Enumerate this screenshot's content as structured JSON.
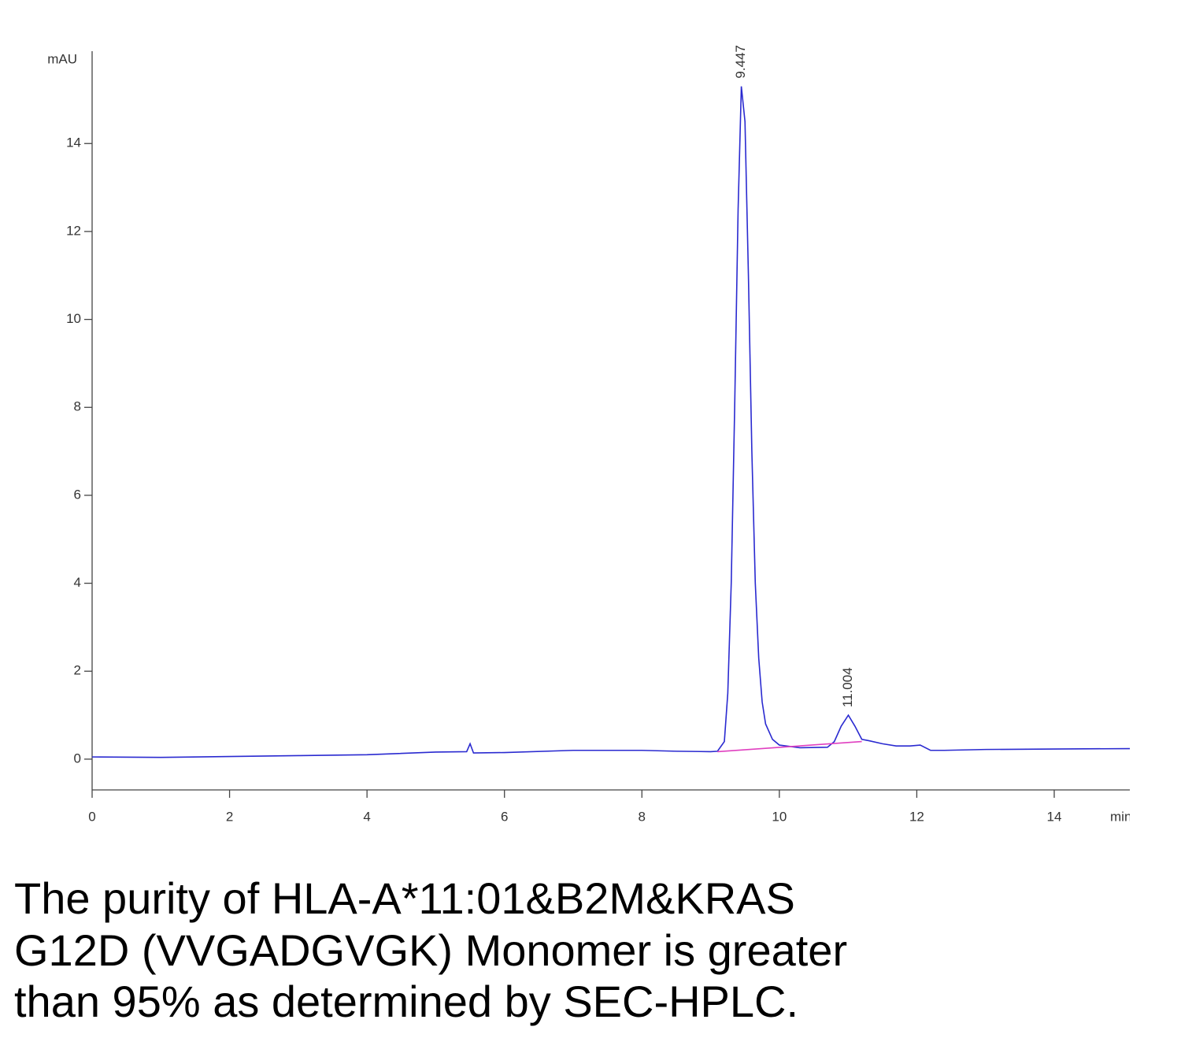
{
  "chart_data": {
    "type": "line",
    "y_label": "mAU",
    "x_label": "min",
    "xlim": [
      0,
      15.1
    ],
    "ylim": [
      -0.7,
      16.1
    ],
    "xticks": [
      0,
      2,
      4,
      6,
      8,
      10,
      12,
      14
    ],
    "yticks": [
      0,
      2,
      4,
      6,
      8,
      10,
      12,
      14
    ],
    "series": [
      {
        "name": "signal",
        "color": "#2a2ad0",
        "x": [
          0,
          1,
          2,
          3,
          4,
          5,
          5.45,
          5.5,
          5.55,
          6,
          7,
          8,
          8.5,
          9.0,
          9.1,
          9.2,
          9.25,
          9.3,
          9.35,
          9.4,
          9.447,
          9.5,
          9.55,
          9.6,
          9.65,
          9.7,
          9.75,
          9.8,
          9.9,
          10.0,
          10.3,
          10.7,
          10.8,
          10.9,
          11.004,
          11.1,
          11.2,
          11.3,
          11.5,
          11.7,
          11.9,
          12.05,
          12.2,
          12.4,
          13,
          14,
          15.1
        ],
        "values": [
          0.05,
          0.04,
          0.06,
          0.08,
          0.1,
          0.16,
          0.17,
          0.35,
          0.14,
          0.15,
          0.2,
          0.2,
          0.18,
          0.17,
          0.18,
          0.4,
          1.5,
          4,
          8,
          12.5,
          15.3,
          14.5,
          11,
          7,
          4,
          2.3,
          1.3,
          0.8,
          0.45,
          0.32,
          0.26,
          0.27,
          0.4,
          0.75,
          1.0,
          0.75,
          0.45,
          0.42,
          0.35,
          0.3,
          0.3,
          0.32,
          0.2,
          0.2,
          0.22,
          0.23,
          0.24
        ]
      },
      {
        "name": "baseline",
        "color": "#e040c0",
        "x": [
          9.1,
          11.2
        ],
        "values": [
          0.17,
          0.4
        ]
      }
    ],
    "peaks": [
      {
        "x": 9.447,
        "y": 15.3,
        "label": "9.447"
      },
      {
        "x": 11.004,
        "y": 1.0,
        "label": "11.004"
      }
    ],
    "caption": [
      "The purity of HLA-A*11:01&B2M&KRAS",
      "G12D (VVGADGVGK) Monomer is greater",
      "than 95% as determined by SEC-HPLC."
    ]
  }
}
